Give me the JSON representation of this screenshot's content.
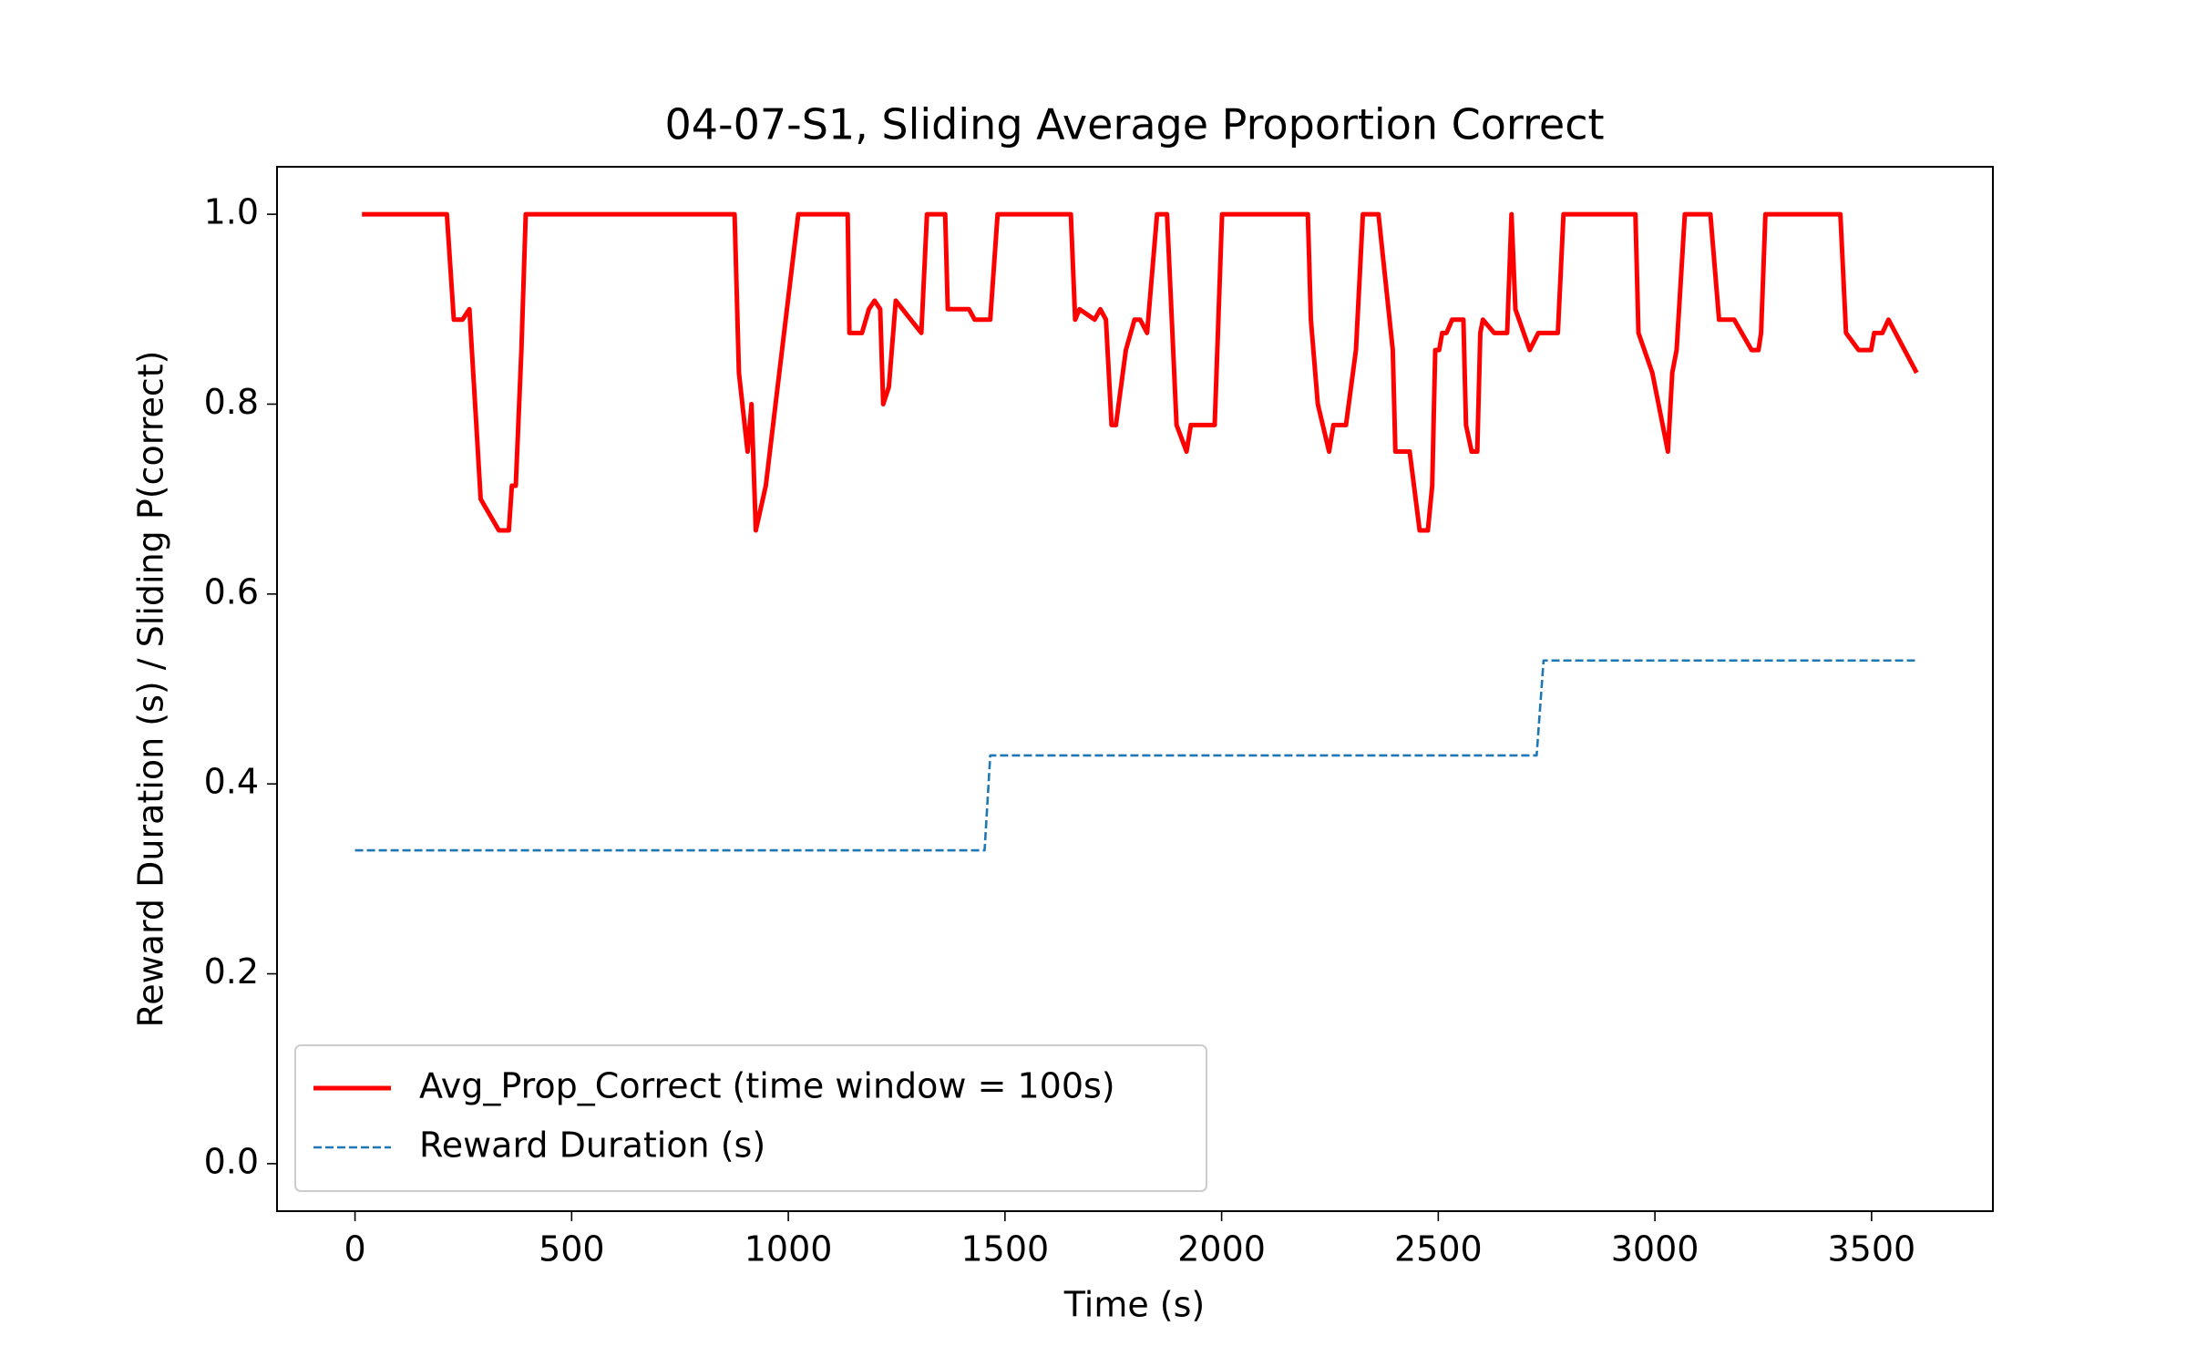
{
  "chart_data": {
    "type": "line",
    "title": "04-07-S1, Sliding Average Proportion Correct",
    "x_label": "Time (s)",
    "y_label": "Reward Duration (s) / Sliding P(correct)",
    "xlim": [
      -180,
      3780
    ],
    "ylim": [
      -0.05,
      1.05
    ],
    "xticks": [
      0,
      500,
      1000,
      1500,
      2000,
      2500,
      3000,
      3500
    ],
    "yticks": [
      {
        "value": 0,
        "label": "0.0"
      },
      0.2,
      0.4,
      0.6,
      0.8,
      {
        "value": 1,
        "label": "1.0"
      }
    ],
    "grid": false,
    "legend": "lower left",
    "series": [
      {
        "name": "Avg_Prop_Correct (time window = 100s)",
        "color": "#ff0000",
        "style": "solid",
        "x": [
          16,
          212,
          228,
          248,
          264,
          280,
          290,
          332,
          355,
          362,
          371,
          384,
          394,
          876,
          886,
          906,
          915,
          925,
          948,
          1023,
          1137,
          1141,
          1170,
          1186,
          1199,
          1212,
          1219,
          1232,
          1248,
          1307,
          1320,
          1362,
          1368,
          1417,
          1430,
          1466,
          1483,
          1652,
          1662,
          1672,
          1707,
          1720,
          1733,
          1746,
          1756,
          1779,
          1799,
          1812,
          1828,
          1851,
          1874,
          1896,
          1919,
          1929,
          1984,
          2001,
          2199,
          2206,
          2222,
          2248,
          2258,
          2287,
          2310,
          2326,
          2362,
          2395,
          2401,
          2434,
          2457,
          2476,
          2486,
          2493,
          2502,
          2509,
          2519,
          2532,
          2558,
          2564,
          2577,
          2590,
          2597,
          2603,
          2629,
          2659,
          2669,
          2678,
          2711,
          2731,
          2776,
          2789,
          2955,
          2962,
          2994,
          3030,
          3040,
          3050,
          3069,
          3128,
          3148,
          3183,
          3223,
          3239,
          3245,
          3255,
          3428,
          3441,
          3470,
          3499,
          3506,
          3525,
          3539,
          3604
        ],
        "values": [
          1.0,
          1.0,
          0.889,
          0.889,
          0.9,
          0.778,
          0.7,
          0.667,
          0.667,
          0.714,
          0.714,
          0.857,
          1.0,
          1.0,
          0.833,
          0.75,
          0.8,
          0.667,
          0.714,
          1.0,
          1.0,
          0.875,
          0.875,
          0.9,
          0.909,
          0.9,
          0.8,
          0.818,
          0.909,
          0.875,
          1.0,
          1.0,
          0.9,
          0.9,
          0.889,
          0.889,
          1.0,
          1.0,
          0.889,
          0.9,
          0.889,
          0.9,
          0.889,
          0.778,
          0.778,
          0.857,
          0.889,
          0.889,
          0.875,
          1.0,
          1.0,
          0.778,
          0.75,
          0.778,
          0.778,
          1.0,
          1.0,
          0.889,
          0.8,
          0.75,
          0.778,
          0.778,
          0.857,
          1.0,
          1.0,
          0.857,
          0.75,
          0.75,
          0.667,
          0.667,
          0.714,
          0.857,
          0.857,
          0.875,
          0.875,
          0.889,
          0.889,
          0.778,
          0.75,
          0.75,
          0.875,
          0.889,
          0.875,
          0.875,
          1.0,
          0.9,
          0.857,
          0.875,
          0.875,
          1.0,
          1.0,
          0.875,
          0.833,
          0.75,
          0.833,
          0.857,
          1.0,
          1.0,
          0.889,
          0.889,
          0.857,
          0.857,
          0.875,
          1.0,
          1.0,
          0.875,
          0.857,
          0.857,
          0.875,
          0.875,
          0.889,
          0.833
        ]
      },
      {
        "name": "Reward Duration (s)",
        "color": "#1f77b4",
        "style": "dashed",
        "x": [
          0,
          1453,
          1466,
          2727,
          2743,
          3600
        ],
        "values": [
          0.33,
          0.33,
          0.43,
          0.43,
          0.53,
          0.53
        ]
      }
    ]
  }
}
